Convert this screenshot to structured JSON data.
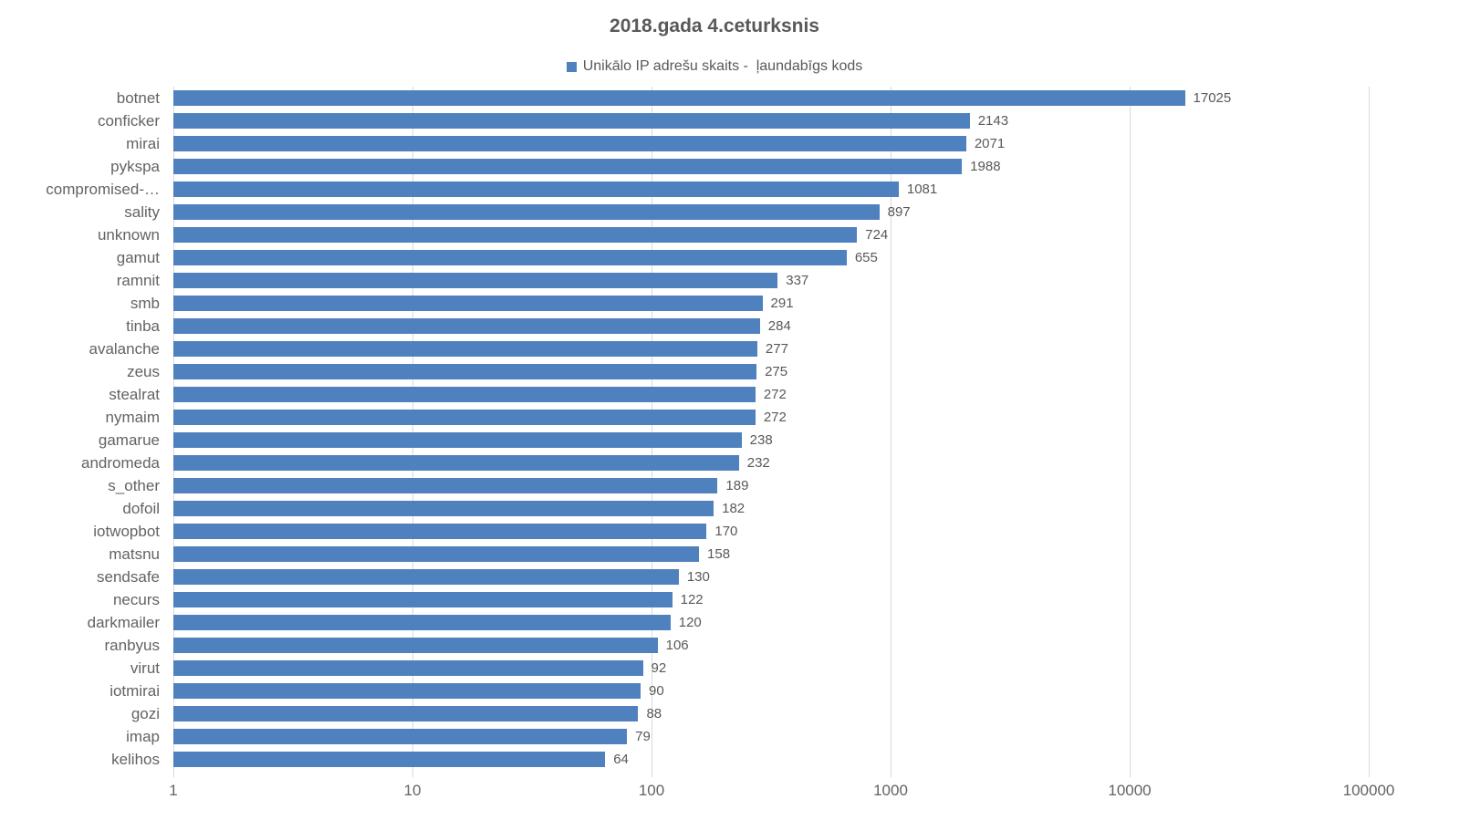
{
  "chart_data": {
    "type": "bar",
    "orientation": "horizontal",
    "title": "2018.gada 4.ceturksnis",
    "legend": "Unikālo IP adrešu skaits -  ļaundabīgs kods",
    "legend_position": "top",
    "x_scale": "log10",
    "xlim": [
      1,
      100000
    ],
    "x_ticks": [
      "1",
      "10",
      "100",
      "1000",
      "10000",
      "100000"
    ],
    "grid": "vertical-only",
    "categories": [
      "botnet",
      "conficker",
      "mirai",
      "pykspa",
      "compromised-…",
      "sality",
      "unknown",
      "gamut",
      "ramnit",
      "smb",
      "tinba",
      "avalanche",
      "zeus",
      "stealrat",
      "nymaim",
      "gamarue",
      "andromeda",
      "s_other",
      "dofoil",
      "iotwopbot",
      "matsnu",
      "sendsafe",
      "necurs",
      "darkmailer",
      "ranbyus",
      "virut",
      "iotmirai",
      "gozi",
      "imap",
      "kelihos"
    ],
    "values": [
      17025,
      2143,
      2071,
      1988,
      1081,
      897,
      724,
      655,
      337,
      291,
      284,
      277,
      275,
      272,
      272,
      238,
      232,
      189,
      182,
      170,
      158,
      130,
      122,
      120,
      106,
      92,
      90,
      88,
      79,
      64
    ],
    "colors": {
      "bar": "#4e81bd",
      "gridline": "#d9d9d9",
      "title_text": "#595959",
      "label_text": "#636363"
    }
  }
}
